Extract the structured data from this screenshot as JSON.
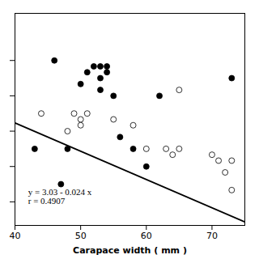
{
  "chart_data": {
    "type": "scatter",
    "xlabel": "Carapace width ( mm )",
    "xlim": [
      40,
      75
    ],
    "ylim": [
      1.2,
      3.0
    ],
    "xticks": [
      40,
      50,
      60,
      70
    ],
    "yticks": [
      1.4,
      1.7,
      2.0,
      2.3,
      2.6
    ],
    "tick_labels": "x",
    "grid": false,
    "series": [
      {
        "type": "scatter",
        "marker": "filled_circle",
        "color": "#000000",
        "x": [
          43,
          46,
          47,
          48,
          50,
          51,
          52,
          53,
          53,
          53,
          54,
          54,
          55,
          56,
          58,
          60,
          62,
          73
        ],
        "values": [
          1.85,
          2.6,
          1.55,
          1.85,
          2.4,
          2.5,
          2.55,
          2.55,
          2.45,
          2.35,
          2.55,
          2.5,
          2.3,
          1.95,
          1.85,
          1.7,
          2.3,
          2.45
        ]
      },
      {
        "type": "scatter",
        "marker": "open_circle",
        "color": "#000000",
        "x": [
          44,
          48,
          49,
          50,
          50,
          51,
          55,
          58,
          60,
          63,
          64,
          65,
          65,
          70,
          71,
          72,
          73,
          73
        ],
        "values": [
          2.15,
          2.0,
          2.15,
          2.1,
          2.05,
          2.15,
          2.1,
          2.05,
          1.85,
          1.85,
          1.8,
          2.35,
          1.85,
          1.8,
          1.75,
          1.65,
          1.75,
          1.5
        ]
      },
      {
        "type": "line",
        "color": "#000000",
        "x": [
          40,
          75
        ],
        "values": [
          2.07,
          1.23
        ]
      }
    ],
    "annotations": [
      {
        "text": "y = 3.03 - 0.024 x\nr = 0.4907",
        "x": 42,
        "y": 1.38
      }
    ]
  }
}
